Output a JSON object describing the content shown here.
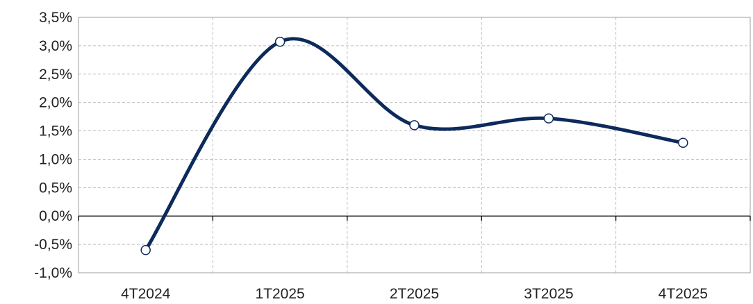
{
  "chart_data": {
    "type": "line",
    "categories": [
      "4T2024",
      "1T2025",
      "2T2025",
      "3T2025",
      "4T2025"
    ],
    "series": [
      {
        "values": [
          -0.6,
          3.07,
          1.6,
          1.72,
          1.29
        ]
      }
    ],
    "ylim": [
      -1.0,
      3.5
    ],
    "yticks": [
      "-1,0%",
      "-0,5%",
      "0,0%",
      "0,5%",
      "1,0%",
      "1,5%",
      "2,0%",
      "2,5%",
      "3,0%",
      "3,5%"
    ],
    "title": "",
    "xlabel": "",
    "ylabel": "",
    "grid": true,
    "smooth": true,
    "line_color": "#0d2a5c",
    "marker_color": "#0d2a5c",
    "grid_color": "#bdbdbd"
  }
}
